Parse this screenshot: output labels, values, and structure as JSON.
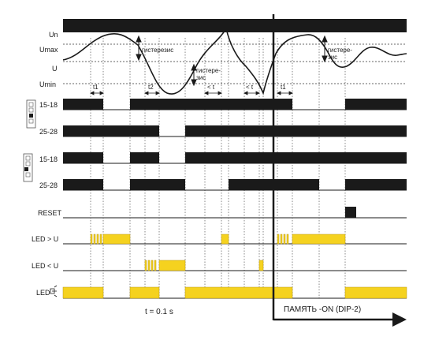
{
  "labels": {
    "un": "Un",
    "umax": "Umax",
    "u": "U",
    "umin": "Umin",
    "ch1_1518": "15-18",
    "ch1_2528": "25-28",
    "ch2_1518": "15-18",
    "ch2_2528": "25-28",
    "reset": "RESET",
    "led_over": "LED > U",
    "led_under": "LED < U",
    "led_supply": "LED"
  },
  "annotations": {
    "hysteresis_main": "гистерезис",
    "hysteresis_lower": "гистере-\nзис",
    "hysteresis_right": "гистере-\nзис",
    "t1_left": "t1",
    "t2": "t2",
    "lt_1": "< t",
    "lt_2": "< t",
    "t1_right": "t1",
    "time_note": "t = 0.1 s",
    "memory_label": "ПАМЯТЬ -ON (DIP-2)"
  },
  "colors": {
    "ink": "#1a1a1a",
    "led_on": "#f5d21f",
    "led_edge": "#b8960a",
    "dip_box": "#555555"
  }
}
